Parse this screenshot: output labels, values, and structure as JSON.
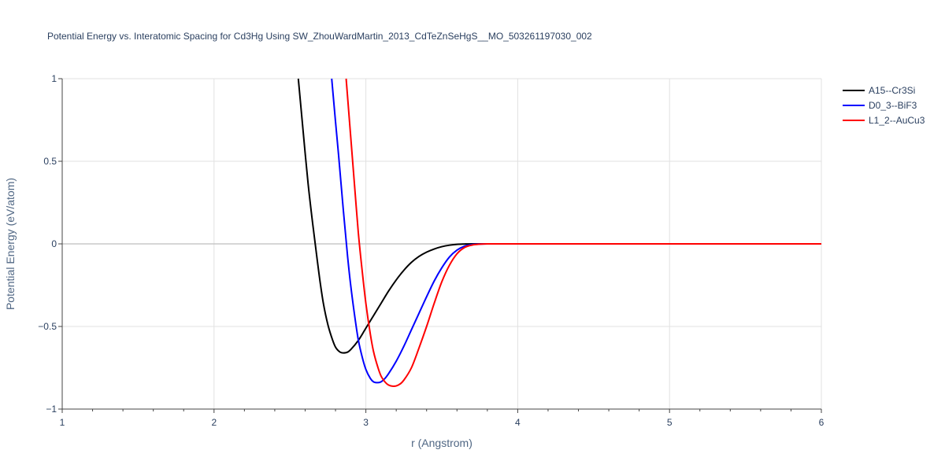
{
  "chart_data": {
    "type": "line",
    "title": "Potential Energy vs. Interatomic Spacing for Cd3Hg Using SW_ZhouWardMartin_2013_CdTeZnSeHgS__MO_503261197030_002",
    "xlabel": "r (Angstrom)",
    "ylabel": "Potential Energy (eV/atom)",
    "xlim": [
      1,
      6
    ],
    "ylim": [
      -1,
      1
    ],
    "xticks": [
      1,
      2,
      3,
      4,
      5,
      6
    ],
    "xtick_labels": [
      "1",
      "2",
      "3",
      "4",
      "5",
      "6"
    ],
    "yticks": [
      -1,
      -0.5,
      0,
      0.5,
      1
    ],
    "ytick_labels": [
      "−1",
      "−0.5",
      "0",
      "0.5",
      "1"
    ],
    "grid": true,
    "legend_position": "top-right",
    "series": [
      {
        "name": "A15--Cr3Si",
        "color": "#000000",
        "x": [
          2.555,
          2.58,
          2.6,
          2.62,
          2.65,
          2.68,
          2.7,
          2.72,
          2.75,
          2.78,
          2.8,
          2.83,
          2.85,
          2.88,
          2.9,
          2.95,
          3.0,
          3.05,
          3.1,
          3.15,
          3.2,
          3.25,
          3.3,
          3.35,
          3.4,
          3.45,
          3.5,
          3.55,
          3.6,
          3.65,
          3.7,
          3.75,
          3.8,
          3.85,
          3.9,
          4.0,
          5.0,
          6.0
        ],
        "y": [
          1.0,
          0.75,
          0.55,
          0.36,
          0.12,
          -0.1,
          -0.24,
          -0.36,
          -0.49,
          -0.58,
          -0.625,
          -0.655,
          -0.66,
          -0.655,
          -0.64,
          -0.585,
          -0.51,
          -0.435,
          -0.36,
          -0.285,
          -0.218,
          -0.16,
          -0.112,
          -0.076,
          -0.05,
          -0.031,
          -0.017,
          -0.008,
          -0.003,
          -0.001,
          0.0,
          0.0,
          0.0,
          0.0,
          0.0,
          0.0,
          0.0,
          0.0
        ]
      },
      {
        "name": "D0_3--BiF3",
        "color": "#0000ff",
        "x": [
          2.775,
          2.8,
          2.82,
          2.85,
          2.88,
          2.9,
          2.93,
          2.95,
          2.98,
          3.0,
          3.03,
          3.05,
          3.08,
          3.1,
          3.13,
          3.15,
          3.2,
          3.25,
          3.3,
          3.35,
          3.4,
          3.45,
          3.5,
          3.55,
          3.6,
          3.65,
          3.7,
          3.75,
          3.8,
          3.85,
          3.9,
          4.0,
          5.0,
          6.0
        ],
        "y": [
          1.0,
          0.74,
          0.54,
          0.22,
          -0.08,
          -0.25,
          -0.46,
          -0.58,
          -0.7,
          -0.76,
          -0.815,
          -0.835,
          -0.84,
          -0.835,
          -0.81,
          -0.785,
          -0.71,
          -0.62,
          -0.52,
          -0.42,
          -0.32,
          -0.225,
          -0.145,
          -0.08,
          -0.038,
          -0.014,
          -0.004,
          -0.001,
          0.0,
          0.0,
          0.0,
          0.0,
          0.0,
          0.0
        ]
      },
      {
        "name": "L1_2--AuCu3",
        "color": "#ff0000",
        "x": [
          2.87,
          2.9,
          2.93,
          2.95,
          2.98,
          3.0,
          3.03,
          3.05,
          3.08,
          3.1,
          3.13,
          3.15,
          3.18,
          3.2,
          3.23,
          3.25,
          3.3,
          3.35,
          3.4,
          3.45,
          3.5,
          3.55,
          3.6,
          3.65,
          3.7,
          3.75,
          3.8,
          3.85,
          3.9,
          4.0,
          5.0,
          6.0
        ],
        "y": [
          1.0,
          0.65,
          0.3,
          0.07,
          -0.2,
          -0.36,
          -0.55,
          -0.65,
          -0.75,
          -0.8,
          -0.84,
          -0.855,
          -0.862,
          -0.86,
          -0.845,
          -0.825,
          -0.75,
          -0.63,
          -0.5,
          -0.36,
          -0.23,
          -0.13,
          -0.06,
          -0.022,
          -0.007,
          -0.002,
          0.0,
          0.0,
          0.0,
          0.0,
          0.0,
          0.0
        ]
      }
    ]
  }
}
